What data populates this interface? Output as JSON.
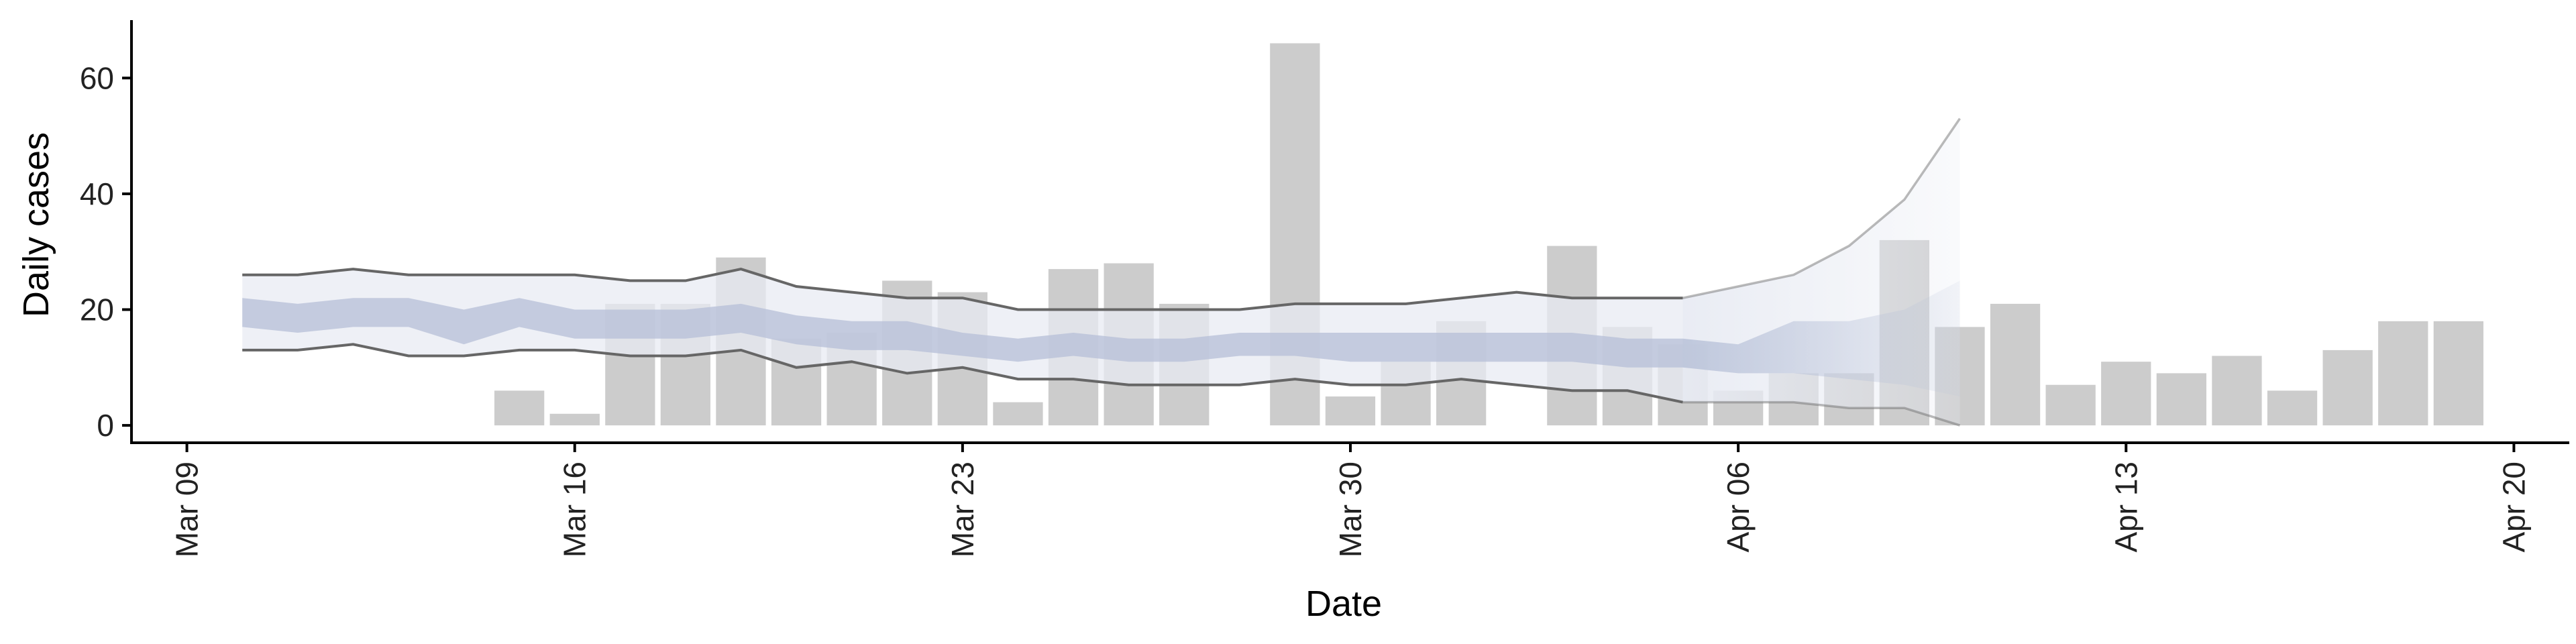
{
  "chart_data": {
    "type": "bar",
    "xlabel": "Date",
    "ylabel": "Daily cases",
    "xlim": [
      "2020-03-08",
      "2020-04-21"
    ],
    "ylim": [
      -3,
      70
    ],
    "x_ticks": [
      "2020-03-09",
      "2020-03-16",
      "2020-03-23",
      "2020-03-30",
      "2020-04-06",
      "2020-04-13",
      "2020-04-20"
    ],
    "x_tick_labels": [
      "Mar 09",
      "Mar 16",
      "Mar 23",
      "Mar 30",
      "Apr 06",
      "Apr 13",
      "Apr 20"
    ],
    "y_ticks": [
      0,
      20,
      40,
      60
    ],
    "grid": false,
    "colors": {
      "bars": "#cccccc",
      "band_outer": "#e8ebf3",
      "band_inner": "#b5bfd7",
      "bounds_line": "#666666",
      "axis": "#000000"
    },
    "bars": {
      "dates": [
        "2020-03-15",
        "2020-03-16",
        "2020-03-17",
        "2020-03-18",
        "2020-03-19",
        "2020-03-20",
        "2020-03-21",
        "2020-03-22",
        "2020-03-23",
        "2020-03-24",
        "2020-03-25",
        "2020-03-26",
        "2020-03-27",
        "2020-03-29",
        "2020-03-30",
        "2020-03-31",
        "2020-04-01",
        "2020-04-03",
        "2020-04-04",
        "2020-04-05",
        "2020-04-06",
        "2020-04-07",
        "2020-04-08",
        "2020-04-09",
        "2020-04-10",
        "2020-04-11",
        "2020-04-12",
        "2020-04-13",
        "2020-04-14",
        "2020-04-15",
        "2020-04-16",
        "2020-04-17",
        "2020-04-18",
        "2020-04-19"
      ],
      "values": [
        6,
        2,
        21,
        21,
        29,
        15,
        16,
        25,
        23,
        4,
        27,
        28,
        21,
        66,
        5,
        11,
        18,
        31,
        17,
        14,
        6,
        9,
        9,
        32,
        17,
        21,
        7,
        11,
        9,
        12,
        6,
        13,
        18,
        18
      ]
    },
    "estimate": {
      "dates": [
        "2020-03-10",
        "2020-03-11",
        "2020-03-12",
        "2020-03-13",
        "2020-03-14",
        "2020-03-15",
        "2020-03-16",
        "2020-03-17",
        "2020-03-18",
        "2020-03-19",
        "2020-03-20",
        "2020-03-21",
        "2020-03-22",
        "2020-03-23",
        "2020-03-24",
        "2020-03-25",
        "2020-03-26",
        "2020-03-27",
        "2020-03-28",
        "2020-03-29",
        "2020-03-30",
        "2020-03-31",
        "2020-04-01",
        "2020-04-02",
        "2020-04-03",
        "2020-04-04",
        "2020-04-05",
        "2020-04-06",
        "2020-04-07",
        "2020-04-08",
        "2020-04-09",
        "2020-04-10"
      ],
      "outer_upper": [
        26,
        26,
        27,
        26,
        26,
        26,
        26,
        25,
        25,
        27,
        24,
        23,
        22,
        22,
        20,
        20,
        20,
        20,
        20,
        21,
        21,
        21,
        22,
        23,
        22,
        22,
        22,
        24,
        26,
        31,
        39,
        53
      ],
      "outer_lower": [
        13,
        13,
        14,
        12,
        12,
        13,
        13,
        12,
        12,
        13,
        10,
        11,
        9,
        10,
        8,
        8,
        7,
        7,
        7,
        8,
        7,
        7,
        8,
        7,
        6,
        6,
        4,
        4,
        4,
        3,
        3,
        0
      ],
      "inner_upper": [
        22,
        21,
        22,
        22,
        20,
        22,
        20,
        20,
        20,
        21,
        19,
        18,
        18,
        16,
        15,
        16,
        15,
        15,
        16,
        16,
        16,
        16,
        16,
        16,
        16,
        15,
        15,
        14,
        18,
        18,
        20,
        25
      ],
      "inner_lower": [
        17,
        16,
        17,
        17,
        14,
        17,
        15,
        15,
        15,
        16,
        14,
        13,
        13,
        12,
        11,
        12,
        11,
        11,
        12,
        12,
        11,
        11,
        11,
        11,
        11,
        10,
        10,
        9,
        9,
        8,
        7,
        5
      ],
      "bounds_dates": [
        "2020-03-10",
        "2020-03-11",
        "2020-03-12",
        "2020-03-13",
        "2020-03-14",
        "2020-03-15",
        "2020-03-16",
        "2020-03-17",
        "2020-03-18",
        "2020-03-19",
        "2020-03-20",
        "2020-03-21",
        "2020-03-22",
        "2020-03-23",
        "2020-03-24",
        "2020-03-25",
        "2020-03-26",
        "2020-03-27",
        "2020-03-28",
        "2020-03-29",
        "2020-03-30",
        "2020-03-31",
        "2020-04-01",
        "2020-04-02",
        "2020-04-03",
        "2020-04-04",
        "2020-04-05",
        "2020-04-06",
        "2020-04-07",
        "2020-04-08",
        "2020-04-09",
        "2020-04-10"
      ],
      "projection_start": "2020-04-05"
    }
  }
}
